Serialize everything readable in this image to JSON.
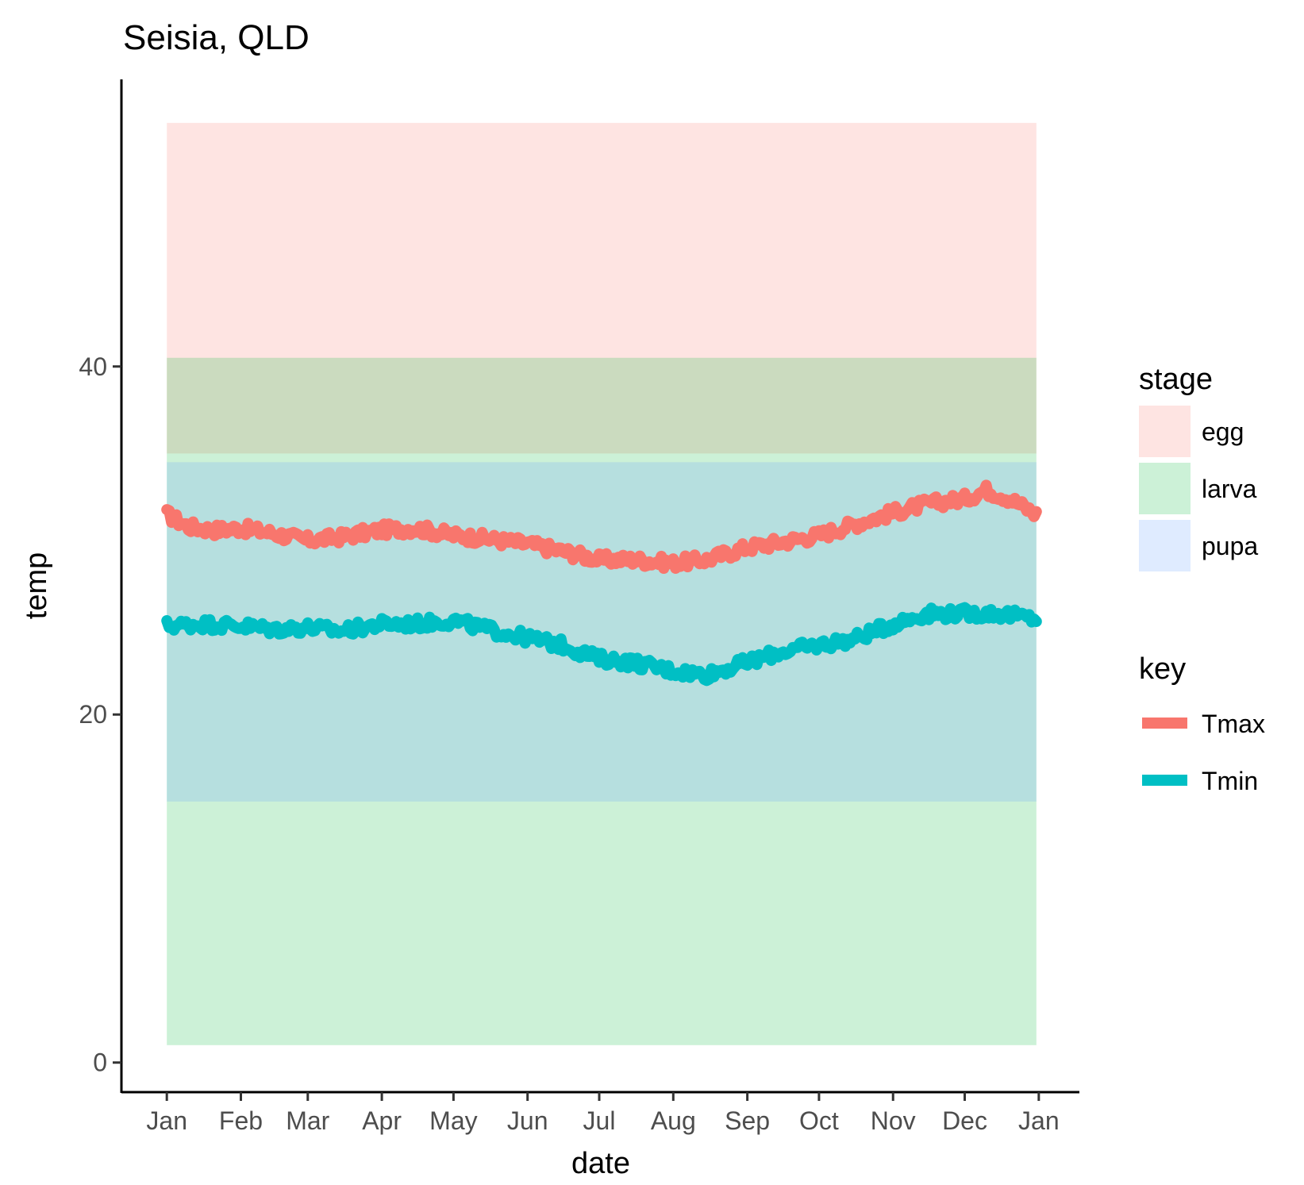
{
  "chart_data": {
    "type": "line",
    "title": "Seisia, QLD",
    "xlabel": "date",
    "ylabel": "temp",
    "x_tick_labels": [
      "Jan",
      "Feb",
      "Mar",
      "Apr",
      "May",
      "Jun",
      "Jul",
      "Aug",
      "Sep",
      "Oct",
      "Nov",
      "Dec",
      "Jan"
    ],
    "x_ticks": [
      "2017-01-01",
      "2017-02-01",
      "2017-03-01",
      "2017-04-01",
      "2017-05-01",
      "2017-06-01",
      "2017-07-01",
      "2017-08-01",
      "2017-09-01",
      "2017-10-01",
      "2017-11-01",
      "2017-12-01",
      "2018-01-01"
    ],
    "xlim": [
      "2016-12-13",
      "2018-01-18"
    ],
    "y_ticks": [
      0,
      20,
      40
    ],
    "ylim": [
      -1.7,
      56.5
    ],
    "grid": false,
    "legend_position": "right",
    "bands": {
      "title": "stage",
      "x_range": [
        "2017-01-01",
        "2017-12-31"
      ],
      "items": [
        {
          "name": "egg",
          "ymin": 35,
          "ymax": 54,
          "color": "#F8766D"
        },
        {
          "name": "larva",
          "ymin": 1,
          "ymax": 40.5,
          "color": "#00BA38"
        },
        {
          "name": "pupa",
          "ymin": 15,
          "ymax": 34.5,
          "color": "#619CFF"
        }
      ],
      "alpha": 0.2
    },
    "series_legend_title": "key",
    "series": [
      {
        "name": "Tmax",
        "color": "#F8766D",
        "points": [
          [
            "2017-01-01",
            31.5
          ],
          [
            "2017-01-10",
            30.8
          ],
          [
            "2017-01-20",
            30.6
          ],
          [
            "2017-02-01",
            30.7
          ],
          [
            "2017-02-15",
            30.4
          ],
          [
            "2017-03-01",
            30.0
          ],
          [
            "2017-03-15",
            30.2
          ],
          [
            "2017-04-01",
            30.6
          ],
          [
            "2017-04-15",
            30.7
          ],
          [
            "2017-05-01",
            30.3
          ],
          [
            "2017-05-15",
            30.1
          ],
          [
            "2017-06-01",
            29.8
          ],
          [
            "2017-06-15",
            29.4
          ],
          [
            "2017-07-01",
            28.9
          ],
          [
            "2017-07-15",
            28.9
          ],
          [
            "2017-08-01",
            28.7
          ],
          [
            "2017-08-15",
            28.9
          ],
          [
            "2017-09-01",
            29.6
          ],
          [
            "2017-09-15",
            29.9
          ],
          [
            "2017-10-01",
            30.3
          ],
          [
            "2017-10-15",
            30.9
          ],
          [
            "2017-11-01",
            31.6
          ],
          [
            "2017-11-15",
            32.1
          ],
          [
            "2017-12-01",
            32.4
          ],
          [
            "2017-12-10",
            32.9
          ],
          [
            "2017-12-20",
            32.4
          ],
          [
            "2017-12-31",
            31.5
          ]
        ]
      },
      {
        "name": "Tmin",
        "color": "#00BFC4",
        "points": [
          [
            "2017-01-01",
            25.1
          ],
          [
            "2017-01-15",
            25.2
          ],
          [
            "2017-02-01",
            25.1
          ],
          [
            "2017-02-15",
            24.9
          ],
          [
            "2017-03-01",
            25.0
          ],
          [
            "2017-03-15",
            24.8
          ],
          [
            "2017-04-01",
            25.2
          ],
          [
            "2017-04-15",
            25.2
          ],
          [
            "2017-05-01",
            25.4
          ],
          [
            "2017-05-15",
            24.9
          ],
          [
            "2017-06-01",
            24.4
          ],
          [
            "2017-06-15",
            24.0
          ],
          [
            "2017-07-01",
            23.2
          ],
          [
            "2017-07-15",
            23.0
          ],
          [
            "2017-08-01",
            22.5
          ],
          [
            "2017-08-15",
            22.3
          ],
          [
            "2017-09-01",
            23.0
          ],
          [
            "2017-09-15",
            23.6
          ],
          [
            "2017-10-01",
            24.0
          ],
          [
            "2017-10-15",
            24.3
          ],
          [
            "2017-11-01",
            25.2
          ],
          [
            "2017-11-15",
            25.8
          ],
          [
            "2017-12-01",
            25.8
          ],
          [
            "2017-12-15",
            25.8
          ],
          [
            "2017-12-31",
            25.5
          ]
        ]
      }
    ]
  }
}
